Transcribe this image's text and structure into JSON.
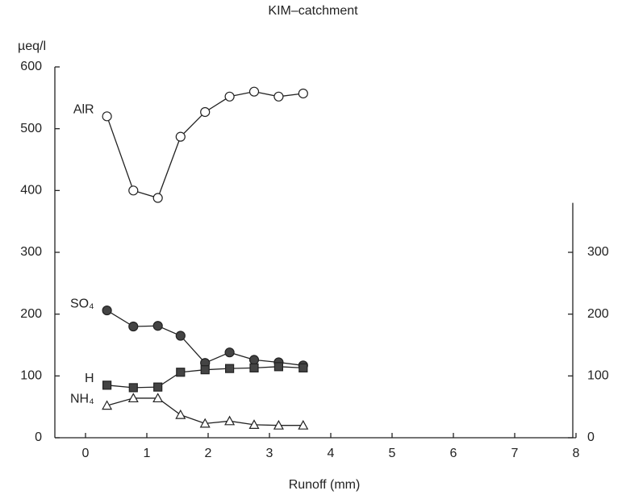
{
  "chart_data": {
    "type": "line",
    "title": "KIM–catchment",
    "y_label": "µeq/l",
    "x_label": "Runoff (mm)",
    "x": [
      0.35,
      0.78,
      1.18,
      1.55,
      1.95,
      2.35,
      2.75,
      3.15,
      3.55
    ],
    "series": [
      {
        "name": "AlR",
        "marker": "open-circle",
        "color": "#222",
        "values": [
          520,
          400,
          388,
          487,
          527,
          552,
          560,
          552,
          557
        ]
      },
      {
        "name": "SO₄",
        "marker": "filled-circle",
        "color": "#444",
        "values": [
          206,
          180,
          181,
          165,
          121,
          138,
          126,
          122,
          117
        ]
      },
      {
        "name": "H",
        "marker": "filled-square",
        "color": "#444",
        "values": [
          85,
          81,
          82,
          106,
          110,
          112,
          113,
          115,
          113
        ]
      },
      {
        "name": "NH₄",
        "marker": "open-triangle",
        "color": "#222",
        "values": [
          52,
          64,
          64,
          37,
          23,
          27,
          21,
          20,
          20
        ]
      }
    ],
    "xlim": [
      0,
      8
    ],
    "xticks": [
      0,
      1,
      2,
      3,
      4,
      5,
      6,
      7,
      8
    ],
    "ylim": [
      0,
      600
    ],
    "yticks": [
      0,
      100,
      200,
      300,
      400,
      500,
      600
    ],
    "y2lim": [
      0,
      380
    ],
    "y2ticks": [
      0,
      100,
      200,
      300
    ]
  }
}
